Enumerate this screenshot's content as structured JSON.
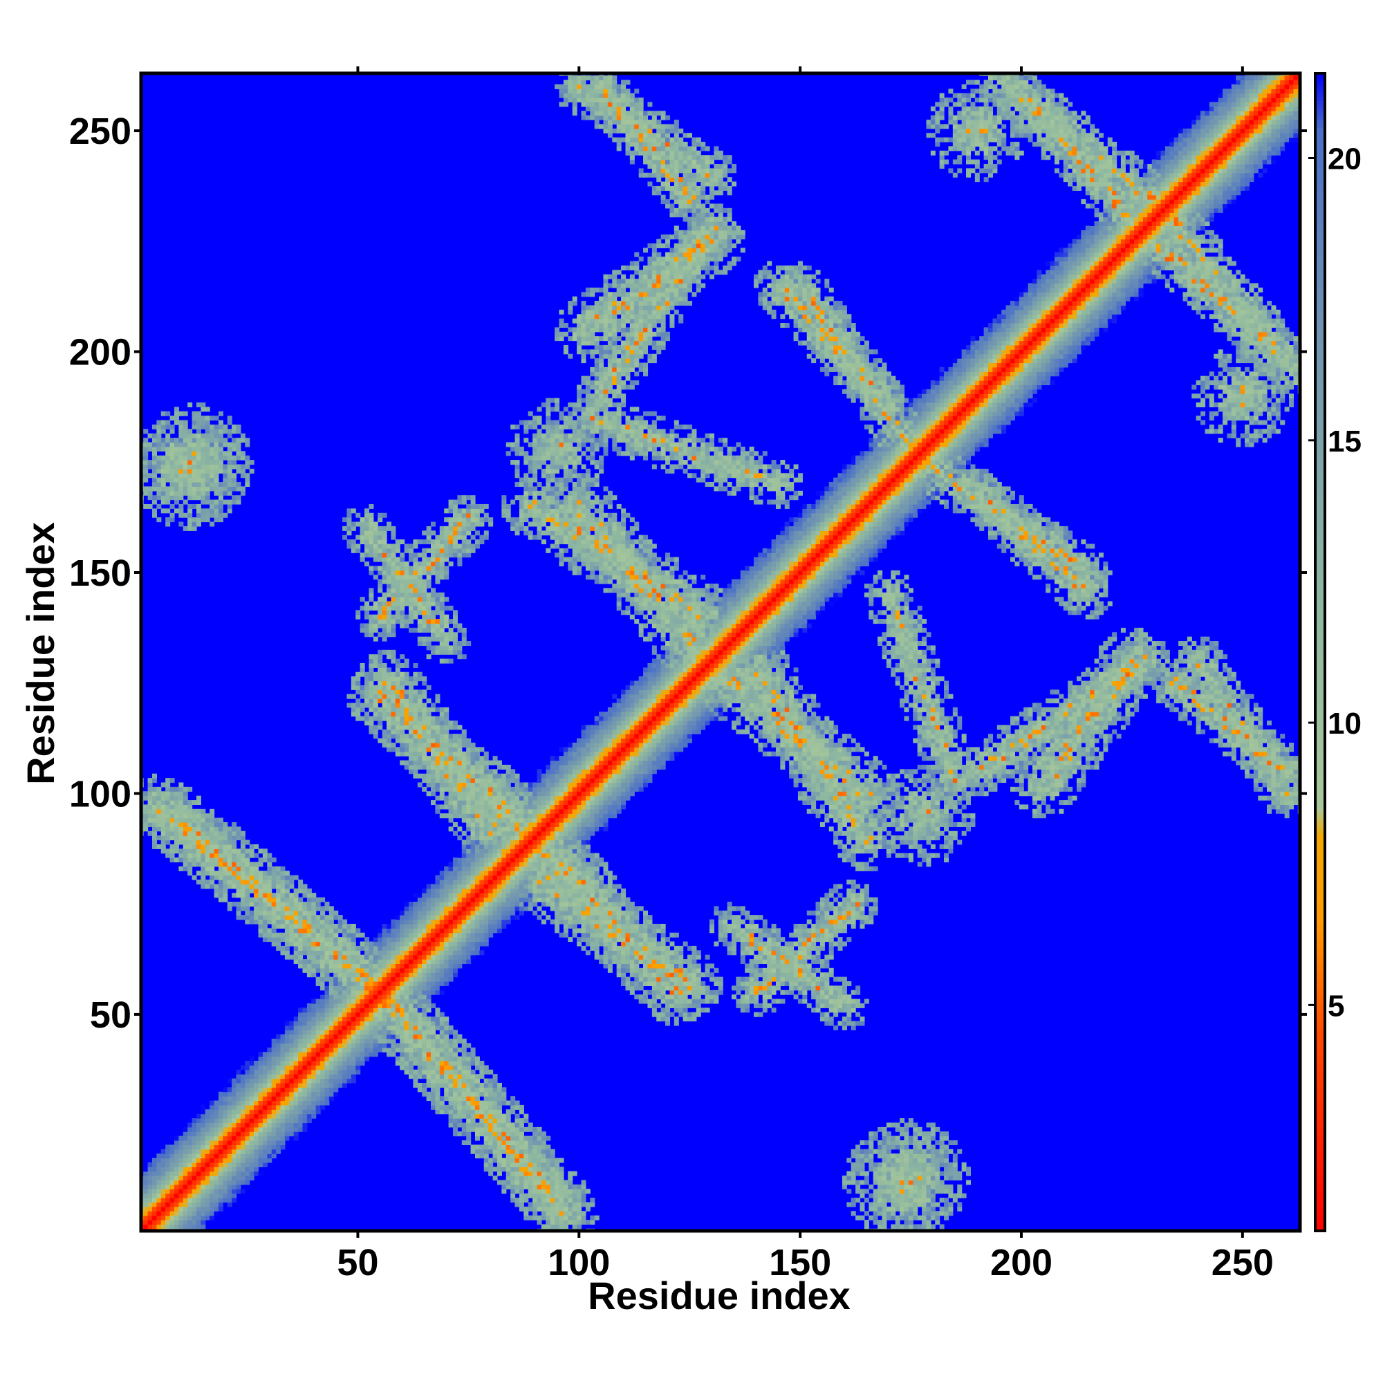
{
  "chart_data": {
    "type": "heatmap",
    "title": "",
    "xlabel": "Residue index",
    "ylabel": "Residue index",
    "n_residues": 263,
    "xlim": [
      1,
      263
    ],
    "ylim": [
      1,
      263
    ],
    "x_ticks": [
      50,
      100,
      150,
      200,
      250
    ],
    "y_ticks": [
      50,
      100,
      150,
      200,
      250
    ],
    "colorbar": {
      "ticks": [
        5,
        10,
        15,
        20
      ],
      "range": [
        1,
        21.5
      ],
      "stops": [
        {
          "value": 1,
          "color": "#ff0000"
        },
        {
          "value": 4.5,
          "color": "#ff4a00"
        },
        {
          "value": 6.5,
          "color": "#ff9a00"
        },
        {
          "value": 8.0,
          "color": "#f2a800"
        },
        {
          "value": 8.5,
          "color": "#a8c89a"
        },
        {
          "value": 12,
          "color": "#8fb8a0"
        },
        {
          "value": 17,
          "color": "#6f93b2"
        },
        {
          "value": 20.5,
          "color": "#4a6fc8"
        },
        {
          "value": 21.5,
          "color": "#0000ff"
        }
      ]
    },
    "background_color": "#0000ff",
    "features": [
      {
        "kind": "diagonal",
        "from": [
          1,
          1
        ],
        "to": [
          263,
          263
        ],
        "half_width": 7
      },
      {
        "kind": "band",
        "from": [
          5,
          97
        ],
        "to": [
          55,
          55
        ],
        "half_width": 4
      },
      {
        "kind": "band",
        "from": [
          55,
          55
        ],
        "to": [
          95,
          8
        ],
        "half_width": 4
      },
      {
        "kind": "band",
        "from": [
          55,
          122
        ],
        "to": [
          100,
          80
        ],
        "half_width": 4
      },
      {
        "kind": "band",
        "from": [
          92,
          80
        ],
        "to": [
          125,
          57
        ],
        "half_width": 4
      },
      {
        "kind": "band",
        "from": [
          55,
          140
        ],
        "to": [
          75,
          162
        ],
        "half_width": 3
      },
      {
        "kind": "band",
        "from": [
          90,
          165
        ],
        "to": [
          128,
          140
        ],
        "half_width": 4
      },
      {
        "kind": "band",
        "from": [
          103,
          185
        ],
        "to": [
          145,
          170
        ],
        "half_width": 3
      },
      {
        "kind": "band",
        "from": [
          128,
          130
        ],
        "to": [
          165,
          100
        ],
        "half_width": 4
      },
      {
        "kind": "band",
        "from": [
          135,
          70
        ],
        "to": [
          160,
          52
        ],
        "half_width": 3
      },
      {
        "kind": "band",
        "from": [
          102,
          205
        ],
        "to": [
          130,
          225
        ],
        "half_width": 4
      },
      {
        "kind": "band",
        "from": [
          100,
          260
        ],
        "to": [
          130,
          240
        ],
        "half_width": 3
      },
      {
        "kind": "band",
        "from": [
          145,
          215
        ],
        "to": [
          168,
          190
        ],
        "half_width": 3
      },
      {
        "kind": "band",
        "from": [
          178,
          175
        ],
        "to": [
          215,
          150
        ],
        "half_width": 3
      },
      {
        "kind": "band",
        "from": [
          190,
          105
        ],
        "to": [
          228,
          130
        ],
        "half_width": 3
      },
      {
        "kind": "band",
        "from": [
          235,
          125
        ],
        "to": [
          260,
          105
        ],
        "half_width": 3
      },
      {
        "kind": "band",
        "from": [
          195,
          262
        ],
        "to": [
          235,
          230
        ],
        "half_width": 3
      },
      {
        "kind": "band",
        "from": [
          230,
          225
        ],
        "to": [
          258,
          200
        ],
        "half_width": 3
      },
      {
        "kind": "blob",
        "center": [
          175,
          13
        ],
        "radius": 7
      },
      {
        "kind": "blob",
        "center": [
          12,
          173
        ],
        "radius": 7
      },
      {
        "kind": "blob",
        "center": [
          178,
          95
        ],
        "radius": 6
      },
      {
        "kind": "blob",
        "center": [
          250,
          190
        ],
        "radius": 6
      }
    ]
  }
}
